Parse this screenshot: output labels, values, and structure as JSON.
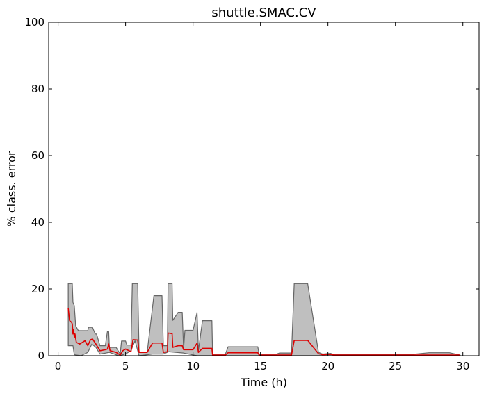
{
  "chart_data": {
    "type": "area",
    "title": "shuttle.SMAC.CV",
    "xlabel": "Time (h)",
    "ylabel": "% class. error",
    "xlim": [
      -0.7,
      31.2
    ],
    "ylim": [
      0,
      100
    ],
    "xticks": [
      0,
      5,
      10,
      15,
      20,
      25,
      30
    ],
    "yticks": [
      0,
      20,
      40,
      60,
      80,
      100
    ],
    "grid": false,
    "colors": {
      "band_fill": "#bfbfbf",
      "band_edge": "#666666",
      "line": "#dd0000",
      "axes": "#000000"
    },
    "band_upper": [
      [
        0.75,
        21.6
      ],
      [
        1.05,
        21.6
      ],
      [
        1.1,
        16.0
      ],
      [
        1.2,
        15.0
      ],
      [
        1.3,
        9.0
      ],
      [
        1.5,
        7.5
      ],
      [
        2.2,
        7.5
      ],
      [
        2.25,
        8.5
      ],
      [
        2.55,
        8.5
      ],
      [
        2.75,
        6.5
      ],
      [
        2.85,
        6.5
      ],
      [
        3.1,
        3.0
      ],
      [
        3.5,
        3.0
      ],
      [
        3.65,
        7.2
      ],
      [
        3.75,
        7.2
      ],
      [
        3.8,
        2.5
      ],
      [
        4.3,
        2.5
      ],
      [
        4.6,
        0.5
      ],
      [
        4.7,
        4.4
      ],
      [
        5.0,
        4.4
      ],
      [
        5.1,
        3.2
      ],
      [
        5.4,
        3.2
      ],
      [
        5.5,
        21.6
      ],
      [
        5.9,
        21.6
      ],
      [
        6.0,
        1.0
      ],
      [
        6.6,
        1.0
      ],
      [
        7.1,
        18.0
      ],
      [
        7.7,
        18.0
      ],
      [
        7.8,
        3.0
      ],
      [
        8.1,
        3.0
      ],
      [
        8.15,
        21.6
      ],
      [
        8.45,
        21.6
      ],
      [
        8.5,
        10.6
      ],
      [
        8.9,
        13.0
      ],
      [
        9.2,
        13.0
      ],
      [
        9.3,
        2.0
      ],
      [
        9.4,
        7.6
      ],
      [
        10.0,
        7.6
      ],
      [
        10.3,
        13.0
      ],
      [
        10.4,
        1.5
      ],
      [
        10.7,
        10.5
      ],
      [
        11.4,
        10.5
      ],
      [
        11.45,
        0.5
      ],
      [
        12.4,
        0.5
      ],
      [
        12.6,
        2.7
      ],
      [
        14.8,
        2.7
      ],
      [
        14.9,
        0.5
      ],
      [
        16.2,
        0.5
      ],
      [
        16.4,
        0.8
      ],
      [
        17.3,
        0.8
      ],
      [
        17.5,
        21.6
      ],
      [
        18.5,
        21.6
      ],
      [
        19.3,
        1.0
      ],
      [
        19.6,
        0.5
      ],
      [
        20.2,
        0.7
      ],
      [
        20.5,
        0.3
      ],
      [
        26.0,
        0.3
      ],
      [
        27.5,
        0.9
      ],
      [
        29.0,
        0.9
      ],
      [
        29.8,
        0.2
      ]
    ],
    "band_lower": [
      [
        0.75,
        3.0
      ],
      [
        1.1,
        3.0
      ],
      [
        1.2,
        0.3
      ],
      [
        1.7,
        0.0
      ],
      [
        2.2,
        1.0
      ],
      [
        2.5,
        3.5
      ],
      [
        2.8,
        2.5
      ],
      [
        3.1,
        0.5
      ],
      [
        3.8,
        1.0
      ],
      [
        4.5,
        0.0
      ],
      [
        5.0,
        0.5
      ],
      [
        5.4,
        1.5
      ],
      [
        5.7,
        4.5
      ],
      [
        6.0,
        0.0
      ],
      [
        7.0,
        0.5
      ],
      [
        7.8,
        0.5
      ],
      [
        8.2,
        1.2
      ],
      [
        9.3,
        0.8
      ],
      [
        10.3,
        0.0
      ],
      [
        12.5,
        0.0
      ],
      [
        17.5,
        0.0
      ],
      [
        18.5,
        0.0
      ],
      [
        29.8,
        0.0
      ]
    ],
    "series": [
      {
        "values": [
          [
            0.75,
            14.2
          ],
          [
            0.85,
            10.5
          ],
          [
            1.0,
            10.0
          ],
          [
            1.05,
            9.5
          ],
          [
            1.1,
            6.5
          ],
          [
            1.15,
            7.8
          ],
          [
            1.2,
            5.5
          ],
          [
            1.25,
            6.5
          ],
          [
            1.35,
            4.0
          ],
          [
            1.6,
            3.5
          ],
          [
            2.0,
            4.5
          ],
          [
            2.2,
            3.0
          ],
          [
            2.4,
            4.8
          ],
          [
            2.55,
            5.0
          ],
          [
            2.8,
            3.5
          ],
          [
            3.1,
            1.5
          ],
          [
            3.5,
            1.8
          ],
          [
            3.65,
            2.0
          ],
          [
            3.75,
            3.5
          ],
          [
            3.85,
            1.5
          ],
          [
            4.3,
            1.0
          ],
          [
            4.6,
            0.2
          ],
          [
            4.8,
            1.5
          ],
          [
            5.0,
            2.0
          ],
          [
            5.4,
            1.2
          ],
          [
            5.55,
            4.8
          ],
          [
            5.9,
            4.7
          ],
          [
            6.0,
            1.0
          ],
          [
            6.6,
            1.0
          ],
          [
            7.0,
            3.8
          ],
          [
            7.7,
            3.8
          ],
          [
            7.8,
            1.0
          ],
          [
            8.1,
            1.2
          ],
          [
            8.15,
            6.8
          ],
          [
            8.45,
            6.6
          ],
          [
            8.5,
            2.5
          ],
          [
            8.9,
            3.0
          ],
          [
            9.2,
            3.0
          ],
          [
            9.3,
            1.8
          ],
          [
            10.0,
            1.8
          ],
          [
            10.3,
            3.8
          ],
          [
            10.4,
            1.0
          ],
          [
            10.7,
            2.2
          ],
          [
            11.4,
            2.2
          ],
          [
            11.45,
            0.2
          ],
          [
            12.4,
            0.2
          ],
          [
            12.6,
            0.9
          ],
          [
            14.8,
            0.9
          ],
          [
            14.9,
            0.2
          ],
          [
            17.3,
            0.2
          ],
          [
            17.5,
            4.6
          ],
          [
            18.5,
            4.6
          ],
          [
            19.3,
            0.6
          ],
          [
            19.6,
            0.3
          ],
          [
            20.2,
            0.4
          ],
          [
            20.5,
            0.2
          ],
          [
            29.8,
            0.2
          ]
        ]
      }
    ]
  }
}
